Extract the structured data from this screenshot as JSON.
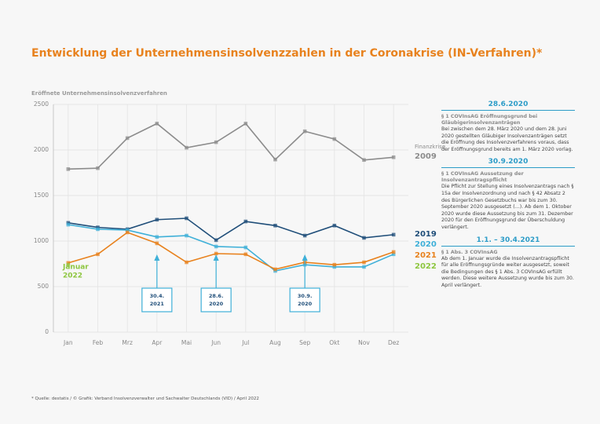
{
  "chart_data": {
    "type": "line",
    "title": "Entwicklung der Unternehmensinsolvenzzahlen in der Coronakrise (IN-Verfahren)*",
    "y_label": "Eröffnete Unternehmensinsolvenzverfahren",
    "categories": [
      "Jan",
      "Feb",
      "Mrz",
      "Apr",
      "Mai",
      "Jun",
      "Jul",
      "Aug",
      "Sep",
      "Okt",
      "Nov",
      "Dez"
    ],
    "series": [
      {
        "name": "2009",
        "label_prefix": "Finanzkrise",
        "color": "#8c8c8c",
        "values": [
          1790,
          1800,
          2130,
          2290,
          2025,
          2085,
          2290,
          1895,
          2205,
          2120,
          1890,
          1920
        ]
      },
      {
        "name": "2019",
        "color": "#1f4e79",
        "values": [
          1200,
          1150,
          1130,
          1235,
          1250,
          1010,
          1215,
          1170,
          1060,
          1170,
          1035,
          1070
        ]
      },
      {
        "name": "2020",
        "color": "#3fb0d8",
        "values": [
          1180,
          1130,
          1120,
          1045,
          1060,
          940,
          930,
          672,
          740,
          716,
          716,
          855
        ]
      },
      {
        "name": "2021",
        "color": "#e8821e",
        "values": [
          760,
          855,
          1095,
          975,
          767,
          862,
          855,
          690,
          767,
          740,
          767,
          880
        ]
      },
      {
        "name": "2022",
        "color": "#8dc63f",
        "values": [
          740,
          null,
          null,
          null,
          null,
          null,
          null,
          null,
          null,
          null,
          null,
          null
        ]
      }
    ],
    "annotation_jan": [
      "Januar",
      "2022"
    ],
    "callouts": [
      {
        "x": "Apr",
        "lines": [
          "30.4.",
          "2021"
        ]
      },
      {
        "x": "Jun",
        "lines": [
          "28.6.",
          "2020"
        ]
      },
      {
        "x": "Sep",
        "lines": [
          "30.9.",
          "2020"
        ]
      }
    ],
    "ylim": [
      0,
      2500
    ],
    "yticks": [
      0,
      500,
      1000,
      1500,
      2000,
      2500
    ],
    "grid": true
  },
  "panels": [
    {
      "heading": "28.6.2020",
      "subheading": "§ 1 COVInsAG Eröffnungsgrund bei Gläubigerinsolvenzanträgen",
      "body": "Bei zwischen dem 28. März 2020 und dem 28. Juni 2020 gestellten Gläubiger Insolvenzanträgen setzt die Eröffnung des Insolvenzverfahrens voraus, dass der Eröffnungsgrund bereits am 1. März 2020 vorlag."
    },
    {
      "heading": "30.9.2020",
      "subheading": "§ 1 COVInsAG Aussetzung der Insolvenzantragspflicht",
      "body": "Die Pflicht zur Stellung eines Insolvenzantrags nach § 15a der Insolvenzordnung und nach § 42 Absatz 2 des Bürgerlichen Gesetzbuchs war bis zum 30. September 2020 ausgesetzt (...). Ab dem 1. Oktober 2020 wurde diese Aussetzung bis zum 31. Dezember 2020 für den Eröffnungsgrund der Überschuldung verlängert."
    },
    {
      "heading": "1.1. – 30.4.2021",
      "subheading": "§ 1 Abs. 3 COVInsAG",
      "body": "Ab dem 1. Januar wurde die Insolvenzantragspflicht für alle Eröffnungsgründe weiter ausgesetzt, soweit die Bedingungen des § 1 Abs. 3 COVInsAG erfüllt werden. Diese weitere Aussetzung wurde bis zum 30. April verlängert."
    }
  ],
  "footnote": "* Quelle: destatis / © Grafik: Verband Insolvenzverwalter und Sachwalter Deutschlands (VID) / April 2022"
}
